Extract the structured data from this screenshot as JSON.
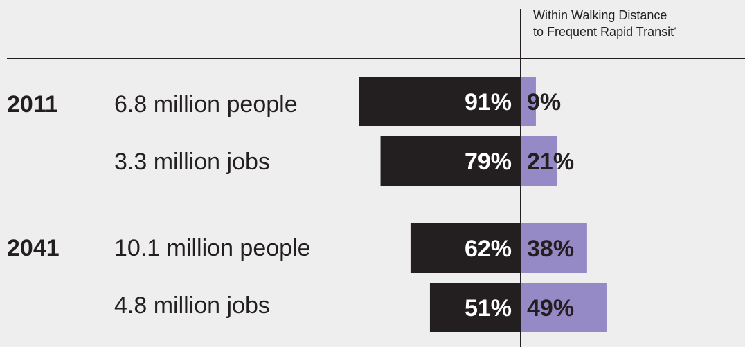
{
  "header": {
    "legend_line1": "Within Walking Distance",
    "legend_line2": "to Frequent Rapid Transit",
    "footnote_mark": "*"
  },
  "colors": {
    "background": "#eeeeee",
    "not_within": "#231f20",
    "within": "#9589c6",
    "text": "#231f20",
    "bar_label_on_dark": "#ffffff"
  },
  "chart_data": {
    "type": "bar",
    "orientation": "horizontal-diverging",
    "groups": [
      {
        "year": "2011",
        "rows": [
          {
            "label": "6.8 million people",
            "not_within": 91,
            "within": 9,
            "not_within_label": "91%",
            "within_label": "9%"
          },
          {
            "label": "3.3 million jobs",
            "not_within": 79,
            "within": 21,
            "not_within_label": "79%",
            "within_label": "21%"
          }
        ]
      },
      {
        "year": "2041",
        "rows": [
          {
            "label": "10.1 million people",
            "not_within": 62,
            "within": 38,
            "not_within_label": "62%",
            "within_label": "38%"
          },
          {
            "label": "4.8 million jobs",
            "not_within": 51,
            "within": 49,
            "not_within_label": "51%",
            "within_label": "49%"
          }
        ]
      }
    ],
    "series": [
      {
        "name": "Within Walking Distance to Frequent Rapid Transit",
        "key": "within"
      },
      {
        "key": "not_within"
      }
    ],
    "legend": "top-right",
    "grid": false
  }
}
